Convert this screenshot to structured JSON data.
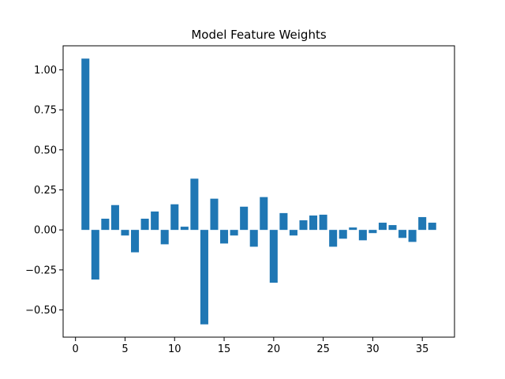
{
  "chart_data": {
    "type": "bar",
    "title": "Model Feature Weights",
    "xlabel": "",
    "ylabel": "",
    "bar_color": "#1f77b4",
    "xlim": [
      -1.25,
      38.25
    ],
    "ylim": [
      -0.67,
      1.15
    ],
    "x_ticks": [
      0,
      5,
      10,
      15,
      20,
      25,
      30,
      35
    ],
    "y_ticks": [
      -0.5,
      -0.25,
      0.0,
      0.25,
      0.5,
      0.75,
      1.0
    ],
    "y_tick_labels": [
      "−0.50",
      "−0.25",
      "0.00",
      "0.25",
      "0.50",
      "0.75",
      "1.00"
    ],
    "grid": false,
    "x": [
      1,
      2,
      3,
      4,
      5,
      6,
      7,
      8,
      9,
      10,
      11,
      12,
      13,
      14,
      15,
      16,
      17,
      18,
      19,
      20,
      21,
      22,
      23,
      24,
      25,
      26,
      27,
      28,
      29,
      30,
      31,
      32,
      33,
      34,
      35,
      36
    ],
    "values": [
      1.07,
      -0.31,
      0.07,
      0.155,
      -0.035,
      -0.14,
      0.07,
      0.115,
      -0.09,
      0.16,
      0.02,
      0.32,
      -0.59,
      0.195,
      -0.085,
      -0.035,
      0.145,
      -0.105,
      0.205,
      -0.33,
      0.105,
      -0.035,
      0.06,
      0.09,
      0.095,
      -0.105,
      -0.055,
      0.015,
      -0.065,
      -0.02,
      0.045,
      0.03,
      -0.05,
      -0.075,
      0.08,
      0.045
    ]
  }
}
